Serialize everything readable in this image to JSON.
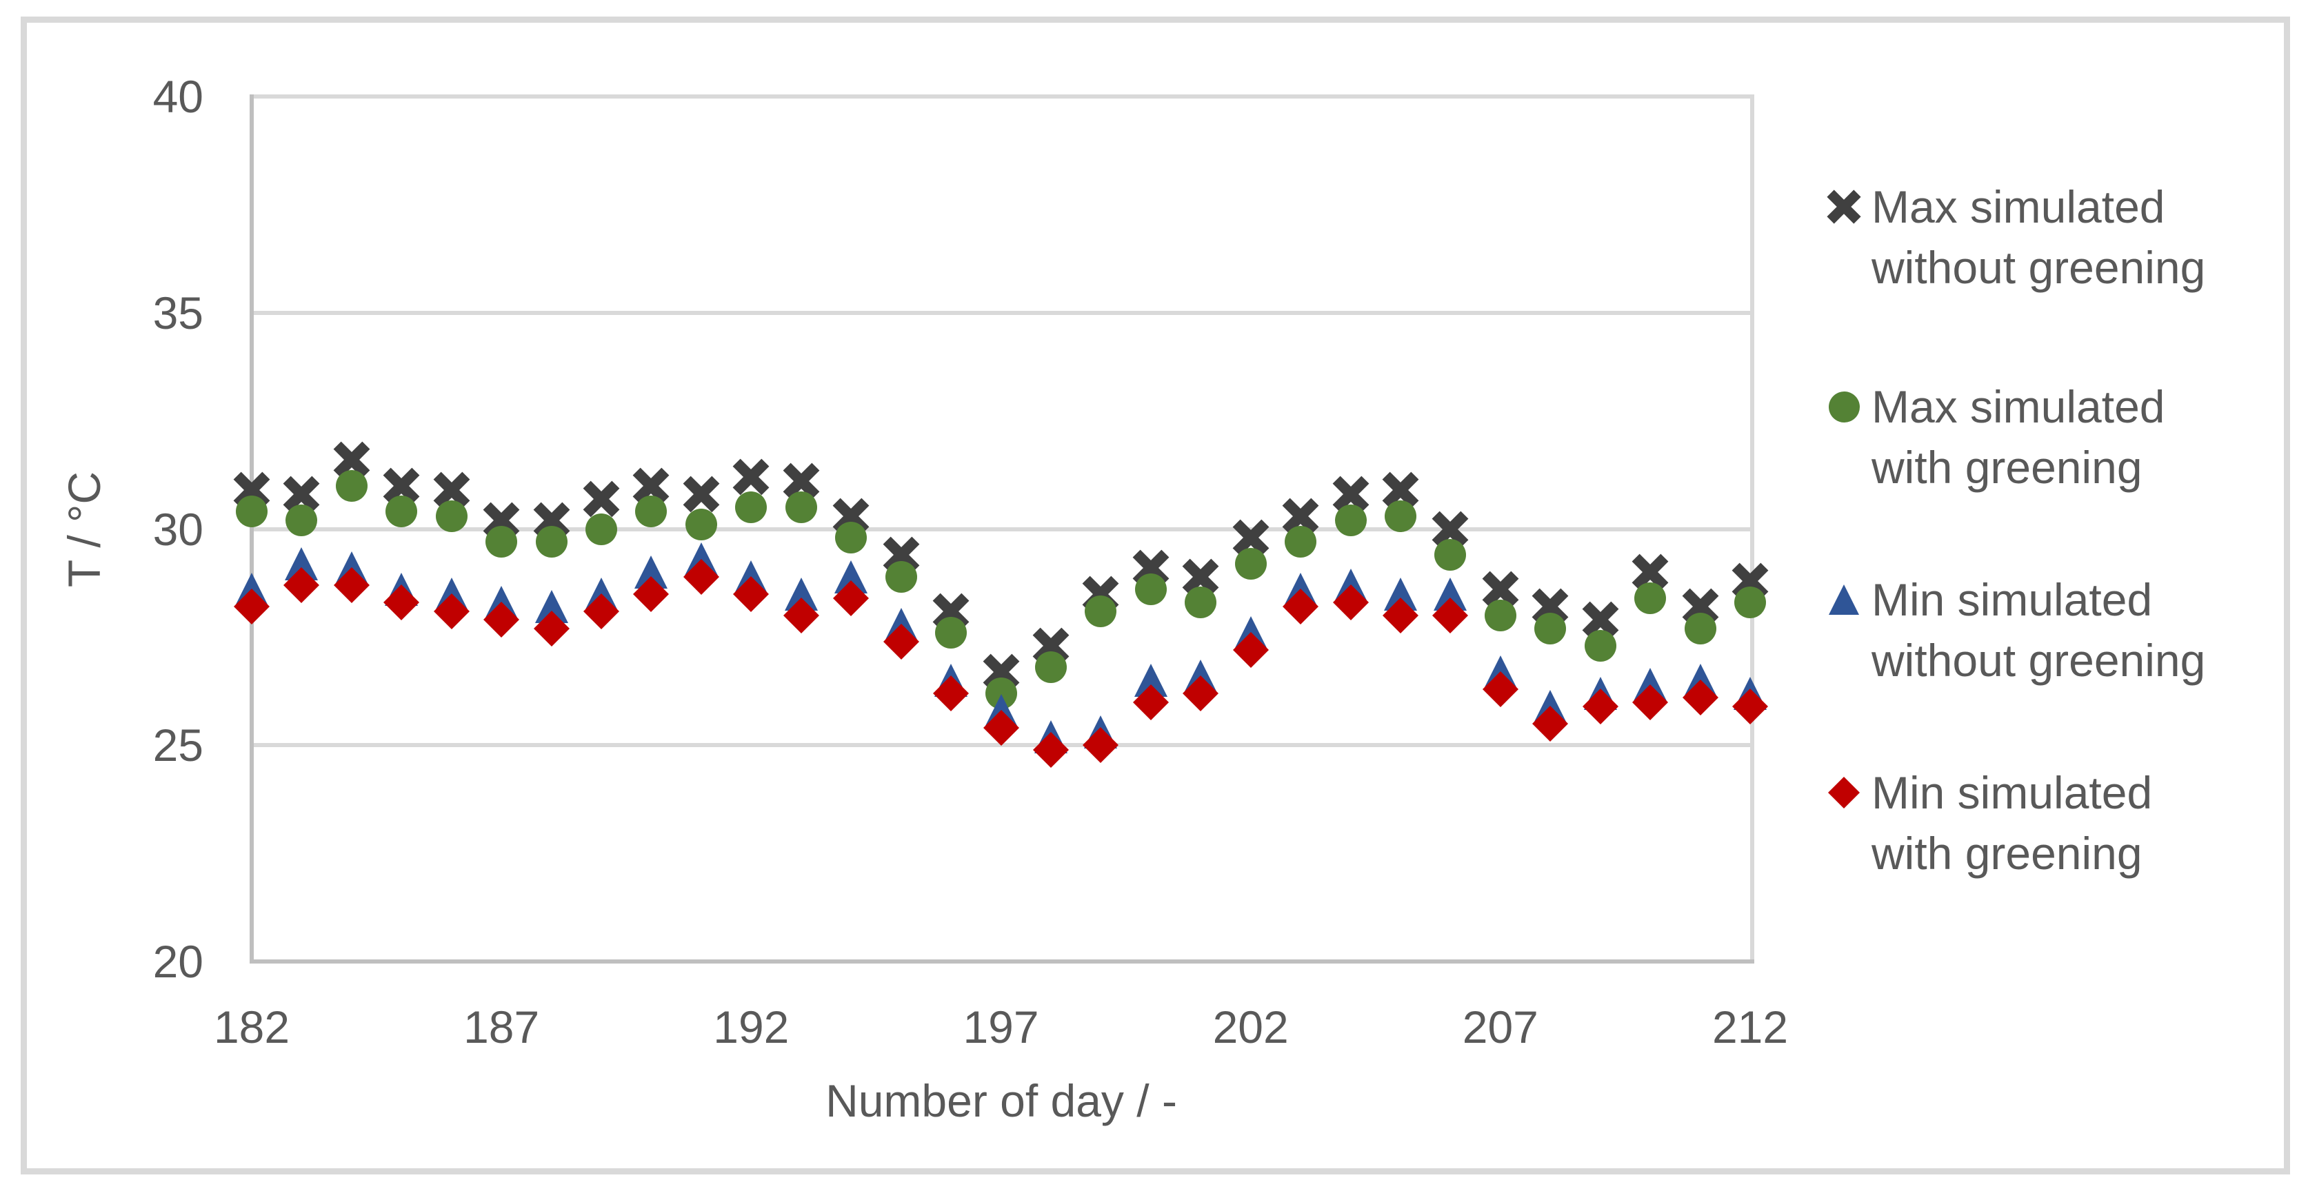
{
  "chart_data": {
    "type": "scatter",
    "title": "",
    "xlabel": "Number of day / -",
    "ylabel": "T / °C",
    "xlim": [
      182,
      212
    ],
    "ylim": [
      20,
      40
    ],
    "x_ticks": [
      182,
      187,
      192,
      197,
      202,
      207,
      212
    ],
    "y_ticks": [
      40,
      35,
      30,
      25,
      20
    ],
    "grid": "horizontal-only",
    "legend_position": "right",
    "x": [
      182,
      183,
      184,
      185,
      186,
      187,
      188,
      189,
      190,
      191,
      192,
      193,
      194,
      195,
      196,
      197,
      198,
      199,
      200,
      201,
      202,
      203,
      204,
      205,
      206,
      207,
      208,
      209,
      210,
      211,
      212
    ],
    "series": [
      {
        "name": "Max simulated without greening",
        "marker": "x",
        "color": "#404040",
        "values": [
          30.9,
          30.8,
          31.6,
          31.0,
          30.9,
          30.2,
          30.2,
          30.7,
          31.0,
          30.8,
          31.2,
          31.1,
          30.3,
          29.4,
          28.1,
          26.7,
          27.3,
          28.5,
          29.1,
          28.9,
          29.8,
          30.3,
          30.8,
          30.9,
          30.0,
          28.6,
          28.2,
          27.9,
          29.0,
          28.2,
          28.8
        ]
      },
      {
        "name": "Max simulated with greening",
        "marker": "circle",
        "color": "#548235",
        "values": [
          30.4,
          30.2,
          31.0,
          30.4,
          30.3,
          29.7,
          29.7,
          30.0,
          30.4,
          30.1,
          30.5,
          30.5,
          29.8,
          28.9,
          27.6,
          26.2,
          26.8,
          28.1,
          28.6,
          28.3,
          29.2,
          29.7,
          30.2,
          30.3,
          29.4,
          28.0,
          27.7,
          27.3,
          28.4,
          27.7,
          28.3
        ]
      },
      {
        "name": "Min simulated without greening",
        "marker": "triangle",
        "color": "#2F5597",
        "values": [
          28.6,
          29.2,
          29.1,
          28.6,
          28.5,
          28.3,
          28.2,
          28.5,
          29.0,
          29.3,
          28.9,
          28.5,
          28.9,
          27.8,
          26.5,
          25.8,
          25.2,
          25.3,
          26.5,
          26.6,
          27.6,
          28.6,
          28.7,
          28.5,
          28.5,
          26.7,
          25.9,
          26.2,
          26.4,
          26.5,
          26.2
        ]
      },
      {
        "name": "Min simulated with greening",
        "marker": "diamond",
        "color": "#C00000",
        "values": [
          28.2,
          28.7,
          28.7,
          28.3,
          28.1,
          27.9,
          27.7,
          28.1,
          28.5,
          28.9,
          28.5,
          28.0,
          28.4,
          27.4,
          26.2,
          25.4,
          24.9,
          25.0,
          26.0,
          26.2,
          27.2,
          28.2,
          28.3,
          28.0,
          28.0,
          26.3,
          25.5,
          25.9,
          26.0,
          26.1,
          25.9
        ]
      }
    ]
  },
  "axes": {
    "x_title": "Number of day / -",
    "y_title": "T / °C"
  },
  "legend": {
    "items": [
      {
        "lines": [
          "Max simulated",
          "without greening"
        ],
        "marker": "x-icon"
      },
      {
        "lines": [
          "Max simulated",
          "with greening"
        ],
        "marker": "circle-icon"
      },
      {
        "lines": [
          "Min simulated",
          "without greening"
        ],
        "marker": "triangle-icon"
      },
      {
        "lines": [
          "Min simulated",
          "with greening"
        ],
        "marker": "diamond-icon"
      }
    ]
  },
  "colors": {
    "gridline": "#D9D9D9",
    "axis_line": "#BFBFBF",
    "text": "#595959",
    "series_max_without": "#404040",
    "series_max_with": "#548235",
    "series_min_without": "#2F5597",
    "series_min_with": "#C00000"
  }
}
